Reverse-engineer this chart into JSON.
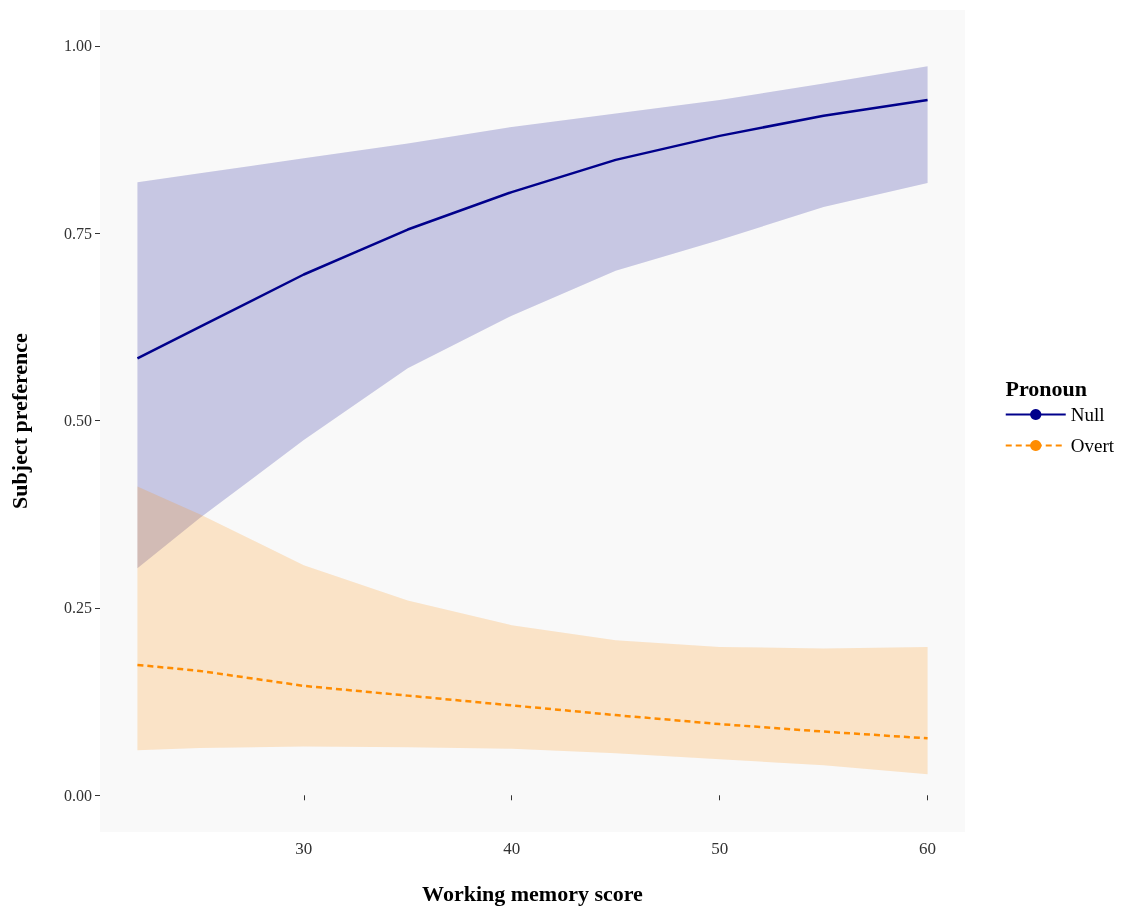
{
  "chart_data": {
    "type": "line",
    "xlabel": "Working memory score",
    "ylabel": "Subject preference",
    "legend_title": "Pronoun",
    "legend": "right",
    "grid": false,
    "marker": "none",
    "xlim": [
      20.2,
      61.8
    ],
    "xticks": [
      30,
      40,
      50,
      60
    ],
    "ylim": [
      -0.049,
      1.048
    ],
    "yticks": [
      {
        "value": 0,
        "label": "0.00"
      },
      {
        "value": 0.25,
        "label": "0.25"
      },
      {
        "value": 0.5,
        "label": "0.50"
      },
      {
        "value": 0.75,
        "label": "0.75"
      },
      {
        "value": 1,
        "label": "1.00"
      }
    ],
    "x": [
      22,
      25,
      30,
      35,
      40,
      45,
      50,
      55,
      60
    ],
    "series": [
      {
        "name": "Null",
        "color": "#00008b",
        "line_style": "solid",
        "values": [
          0.583,
          0.625,
          0.695,
          0.755,
          0.805,
          0.848,
          0.88,
          0.907,
          0.928
        ],
        "lower": [
          0.303,
          0.37,
          0.474,
          0.57,
          0.64,
          0.7,
          0.741,
          0.785,
          0.817
        ],
        "upper": [
          0.818,
          0.83,
          0.85,
          0.87,
          0.892,
          0.91,
          0.928,
          0.95,
          0.973
        ]
      },
      {
        "name": "Overt",
        "color": "#ff8c00",
        "line_style": "dashed",
        "values": [
          0.174,
          0.166,
          0.146,
          0.133,
          0.12,
          0.107,
          0.095,
          0.085,
          0.076
        ],
        "lower": [
          0.06,
          0.063,
          0.065,
          0.064,
          0.062,
          0.056,
          0.048,
          0.04,
          0.028
        ],
        "upper": [
          0.412,
          0.375,
          0.307,
          0.26,
          0.227,
          0.207,
          0.198,
          0.196,
          0.198
        ]
      }
    ]
  }
}
